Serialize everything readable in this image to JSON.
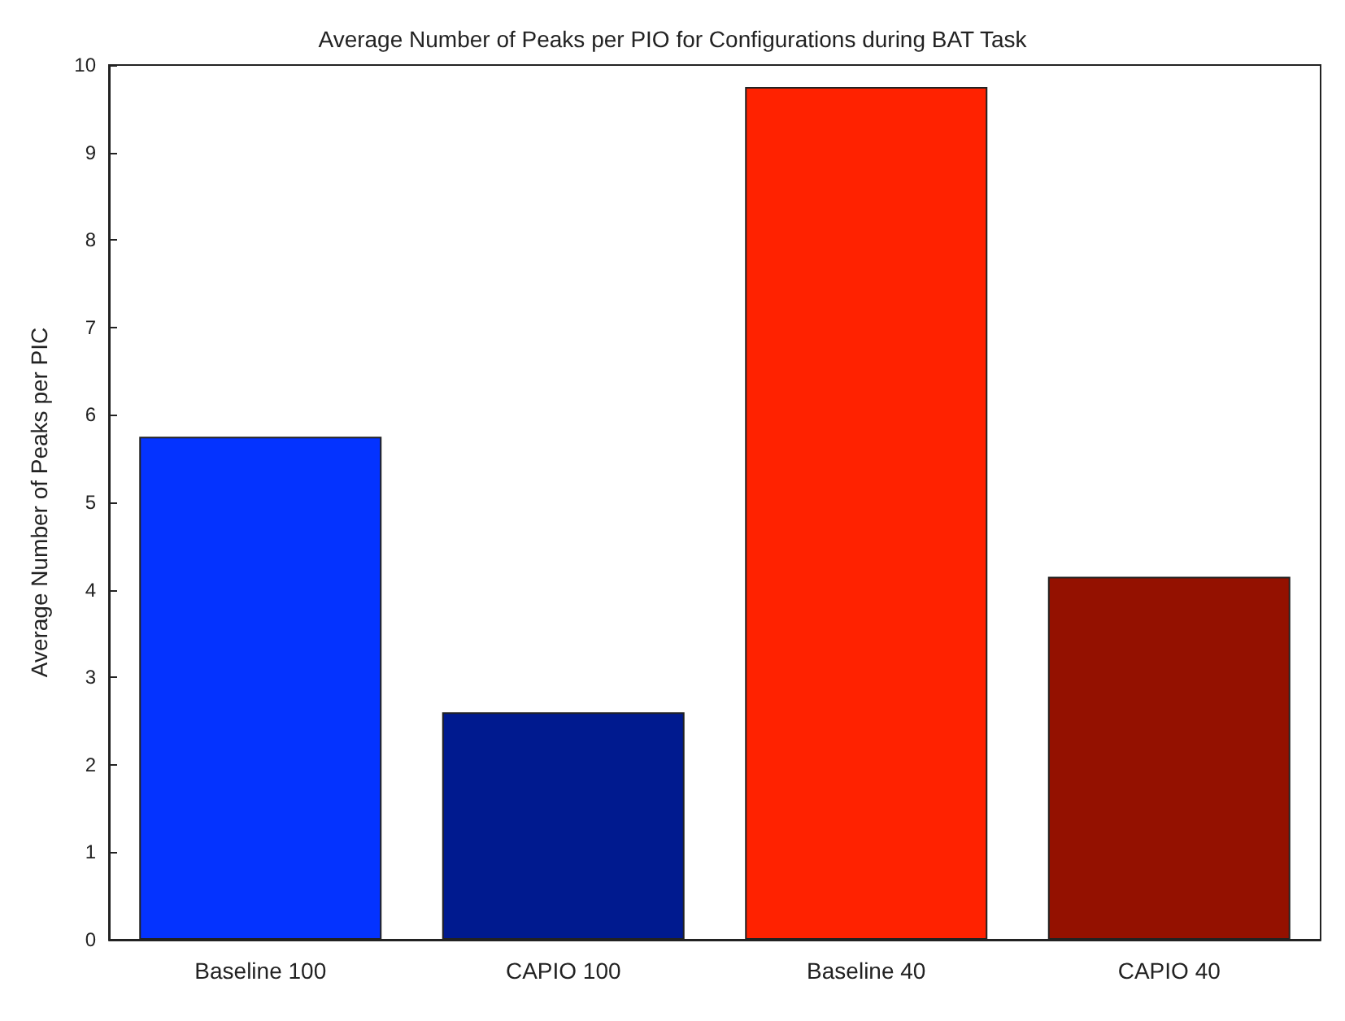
{
  "chart_data": {
    "type": "bar",
    "title": "Average Number of Peaks per PIO for Configurations during BAT Task",
    "ylabel": "Average Number of Peaks per PIC",
    "categories": [
      "Baseline 100",
      "CAPIO 100",
      "Baseline 40",
      "CAPIO 40"
    ],
    "values": [
      5.75,
      2.6,
      9.75,
      4.15
    ],
    "colors": [
      "#0433ff",
      "#001a8f",
      "#ff2200",
      "#941100"
    ],
    "ylim": [
      0,
      10
    ],
    "yticks": [
      0,
      1,
      2,
      3,
      4,
      5,
      6,
      7,
      8,
      9,
      10
    ],
    "grid": false
  }
}
